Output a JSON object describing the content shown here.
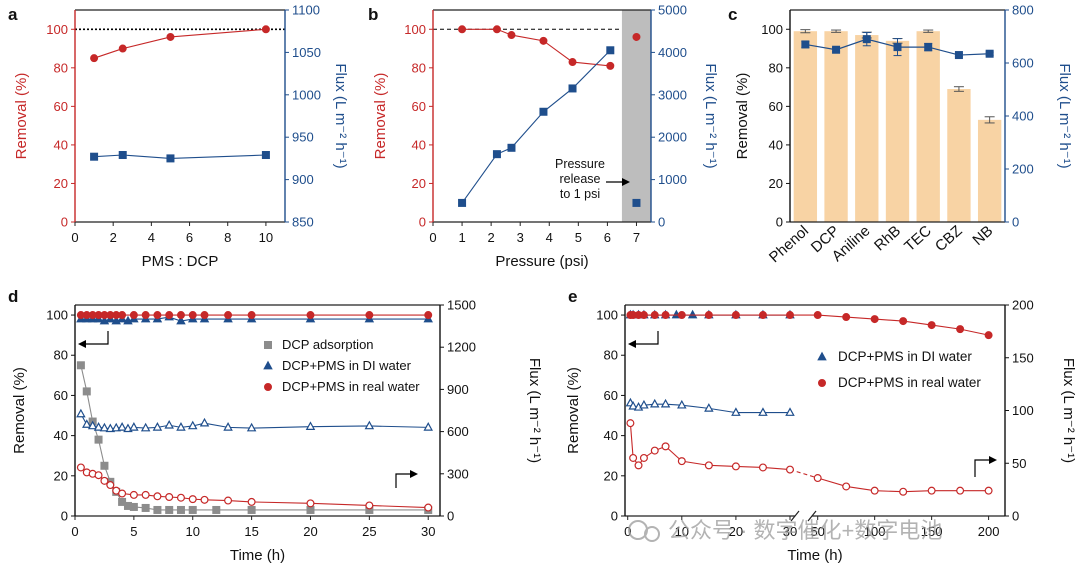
{
  "colors": {
    "red": "#c62828",
    "blue": "#1f4e8c",
    "bar": "#f8d3a4",
    "grey": "#8c8c8c",
    "shade": "#bdbdbd",
    "black": "#111111",
    "watermark": "#9a9a9a"
  },
  "watermark": "公众号 · 数字催化+数字电池",
  "chart_data": [
    {
      "panel": "a",
      "type": "line",
      "xlabel": "PMS : DCP",
      "xlim": [
        0,
        11
      ],
      "xticks": [
        0,
        2,
        4,
        6,
        8,
        10
      ],
      "ylabel": "Removal (%)",
      "ylim": [
        0,
        110
      ],
      "yticks": [
        0,
        20,
        40,
        60,
        80,
        100
      ],
      "y2label": "Flux (L m⁻² h⁻¹)",
      "y2lim": [
        850,
        1100
      ],
      "y2ticks": [
        850,
        900,
        950,
        1000,
        1050,
        1100
      ],
      "reference_line": {
        "axis": "y",
        "value": 100,
        "style": "dotted"
      },
      "series": [
        {
          "name": "Removal",
          "axis": "y",
          "color": "red",
          "marker": "circle",
          "x": [
            1,
            2.5,
            5,
            10
          ],
          "values": [
            85,
            90,
            96,
            100
          ]
        },
        {
          "name": "Flux",
          "axis": "y2",
          "color": "blue",
          "marker": "square",
          "x": [
            1,
            2.5,
            5,
            10
          ],
          "values": [
            927,
            929,
            925,
            929
          ]
        }
      ]
    },
    {
      "panel": "b",
      "type": "line",
      "xlabel": "Pressure (psi)",
      "xlim": [
        0,
        7.5
      ],
      "xticks": [
        0,
        1,
        2,
        3,
        4,
        5,
        6,
        7
      ],
      "ylabel": "Removal (%)",
      "ylim": [
        0,
        110
      ],
      "yticks": [
        0,
        20,
        40,
        60,
        80,
        100
      ],
      "y2label": "Flux (L m⁻² h⁻¹)",
      "y2lim": [
        0,
        5000
      ],
      "y2ticks": [
        0,
        1000,
        2000,
        3000,
        4000,
        5000
      ],
      "reference_line": {
        "axis": "y",
        "value": 100,
        "style": "dashed"
      },
      "shaded_region": [
        6.5,
        7.5
      ],
      "annotation": [
        "Pressure",
        "release",
        "to 1 psi"
      ],
      "series": [
        {
          "name": "Removal",
          "axis": "y",
          "color": "red",
          "marker": "circle",
          "x": [
            1,
            2.2,
            2.7,
            3.8,
            4.8,
            6.1
          ],
          "values": [
            100,
            100,
            97,
            94,
            83,
            81
          ]
        },
        {
          "name": "Removal after release",
          "axis": "y",
          "color": "red",
          "marker": "circle",
          "x": [
            7
          ],
          "values": [
            96
          ],
          "connected": false
        },
        {
          "name": "Flux",
          "axis": "y2",
          "color": "blue",
          "marker": "square",
          "x": [
            1,
            2.2,
            2.7,
            3.8,
            4.8,
            6.1
          ],
          "values": [
            450,
            1600,
            1750,
            2600,
            3150,
            4050
          ]
        },
        {
          "name": "Flux after release",
          "axis": "y2",
          "color": "blue",
          "marker": "square",
          "x": [
            7
          ],
          "values": [
            450
          ],
          "connected": false
        }
      ]
    },
    {
      "panel": "c",
      "type": "bar",
      "categories": [
        "Phenol",
        "DCP",
        "Aniline",
        "RhB",
        "TEC",
        "CBZ",
        "NB"
      ],
      "ylabel": "Removal (%)",
      "ylim": [
        0,
        110
      ],
      "yticks": [
        0,
        20,
        40,
        60,
        80,
        100
      ],
      "y2label": "Flux (L m⁻² h⁻¹)",
      "y2lim": [
        0,
        800
      ],
      "y2ticks": [
        0,
        200,
        400,
        600,
        800
      ],
      "series": [
        {
          "name": "Removal",
          "axis": "y",
          "kind": "bar",
          "color": "bar",
          "values": [
            99,
            99,
            97,
            94,
            99,
            69,
            53
          ],
          "errors": [
            0.8,
            0.6,
            1.5,
            1.2,
            0.6,
            1.2,
            1.6
          ]
        },
        {
          "name": "Flux",
          "axis": "y2",
          "kind": "line",
          "color": "blue",
          "marker": "square",
          "values": [
            670,
            650,
            690,
            660,
            660,
            630,
            635
          ],
          "errors": [
            12,
            8,
            25,
            32,
            14,
            6,
            6
          ]
        }
      ]
    },
    {
      "panel": "d",
      "type": "line",
      "xlabel": "Time (h)",
      "xlim": [
        0,
        31
      ],
      "xticks": [
        0,
        5,
        10,
        15,
        20,
        25,
        30
      ],
      "ylabel": "Removal (%)",
      "ylim": [
        0,
        105
      ],
      "yticks": [
        0,
        20,
        40,
        60,
        80,
        100
      ],
      "y2label": "Flux (L m⁻² h⁻¹)",
      "y2lim": [
        0,
        1500
      ],
      "y2ticks": [
        0,
        300,
        600,
        900,
        1200,
        1500
      ],
      "legend": {
        "placement": "center-right",
        "entries": [
          "DCP adsorption",
          "DCP+PMS in DI water",
          "DCP+PMS in real water"
        ]
      },
      "series": [
        {
          "name": "DCP adsorption",
          "axis": "y",
          "color": "grey",
          "marker": "square",
          "filled": true,
          "x": [
            0.5,
            1,
            1.5,
            2,
            2.5,
            3,
            3.5,
            4,
            4.5,
            5,
            6,
            7,
            8,
            9,
            10,
            12,
            15,
            20,
            25,
            30
          ],
          "values": [
            75,
            62,
            47,
            38,
            25,
            17,
            12,
            7,
            5,
            4.5,
            4,
            3,
            3,
            3,
            3,
            3,
            3,
            3,
            3,
            3
          ]
        },
        {
          "name": "DCP+PMS in DI water",
          "axis": "y",
          "color": "blue",
          "marker": "triangle",
          "filled": true,
          "x": [
            0.5,
            1,
            1.5,
            2,
            2.5,
            3,
            3.5,
            4,
            4.5,
            5,
            6,
            7,
            8,
            9,
            10,
            11,
            13,
            15,
            20,
            25,
            30
          ],
          "values": [
            98,
            98,
            98,
            98,
            97,
            98,
            97,
            98,
            97,
            98,
            98,
            98,
            99,
            97,
            98,
            98,
            98,
            98,
            98,
            98,
            98
          ]
        },
        {
          "name": "DCP+PMS in real water",
          "axis": "y",
          "color": "red",
          "marker": "circle",
          "filled": true,
          "x": [
            0.5,
            1,
            1.5,
            2,
            2.5,
            3,
            3.5,
            4,
            5,
            6,
            7,
            8,
            9,
            10,
            11,
            13,
            15,
            20,
            25,
            30
          ],
          "values": [
            100,
            100,
            100,
            100,
            100,
            100,
            100,
            100,
            100,
            100,
            100,
            100,
            100,
            100,
            100,
            100,
            100,
            100,
            100,
            100
          ]
        },
        {
          "name": "Flux (DI water)",
          "axis": "y2",
          "color": "blue",
          "marker": "triangle",
          "filled": false,
          "x": [
            0.5,
            1,
            1.5,
            2,
            2.5,
            3,
            3.5,
            4,
            4.5,
            5,
            6,
            7,
            8,
            9,
            10,
            11,
            13,
            15,
            20,
            25,
            30
          ],
          "values": [
            725,
            650,
            640,
            630,
            625,
            620,
            625,
            630,
            620,
            630,
            625,
            630,
            645,
            630,
            640,
            660,
            630,
            625,
            635,
            640,
            630
          ]
        },
        {
          "name": "Flux (real water)",
          "axis": "y2",
          "color": "red",
          "marker": "circle",
          "filled": false,
          "x": [
            0.5,
            1,
            1.5,
            2,
            2.5,
            3,
            3.5,
            4,
            5,
            6,
            7,
            8,
            9,
            10,
            11,
            13,
            15,
            20,
            25,
            30
          ],
          "values": [
            345,
            310,
            300,
            290,
            250,
            220,
            180,
            160,
            150,
            150,
            140,
            135,
            130,
            120,
            115,
            110,
            100,
            90,
            75,
            60
          ]
        }
      ]
    },
    {
      "panel": "e",
      "type": "line",
      "xlabel": "Time (h)",
      "xticks": [
        0,
        10,
        20,
        30,
        50,
        100,
        150,
        200
      ],
      "axis_break": {
        "at": 30,
        "resume": 45
      },
      "ylabel": "Removal (%)",
      "ylim": [
        0,
        105
      ],
      "yticks": [
        0,
        20,
        40,
        60,
        80,
        100
      ],
      "y2label": "Flux (L m⁻² h⁻¹)",
      "y2lim": [
        0,
        200
      ],
      "y2ticks": [
        0,
        50,
        100,
        150,
        200
      ],
      "legend": {
        "placement": "top-right",
        "entries": [
          "DCP+PMS in DI water",
          "DCP+PMS in real water"
        ]
      },
      "series": [
        {
          "name": "DCP+PMS in DI water",
          "axis": "y",
          "color": "blue",
          "marker": "triangle",
          "filled": true,
          "x": [
            0.5,
            1,
            2,
            3,
            5,
            7,
            9,
            12,
            15,
            20,
            25,
            30
          ],
          "values": [
            100,
            100,
            100,
            100,
            100,
            100,
            100,
            100,
            100,
            100,
            100,
            100
          ]
        },
        {
          "name": "DCP+PMS in real water",
          "axis": "y",
          "color": "red",
          "marker": "circle",
          "filled": true,
          "x": [
            0.5,
            1,
            2,
            3,
            5,
            7,
            10,
            15,
            20,
            25,
            30,
            50,
            75,
            100,
            125,
            150,
            175,
            200
          ],
          "values": [
            100,
            100,
            100,
            100,
            100,
            100,
            100,
            100,
            100,
            100,
            100,
            100,
            99,
            98,
            97,
            95,
            93,
            90
          ]
        },
        {
          "name": "Flux (DI water)",
          "axis": "y2",
          "color": "blue",
          "marker": "triangle",
          "filled": false,
          "x": [
            0.5,
            1,
            2,
            3,
            5,
            7,
            10,
            15,
            20,
            25,
            30
          ],
          "values": [
            107,
            104,
            103,
            105,
            106,
            106,
            105,
            102,
            98,
            98,
            98
          ]
        },
        {
          "name": "Flux (real water)",
          "axis": "y2",
          "color": "red",
          "marker": "circle",
          "filled": false,
          "dashed_break": true,
          "x": [
            0.5,
            1,
            2,
            3,
            5,
            7,
            10,
            15,
            20,
            25,
            30,
            50,
            75,
            100,
            125,
            150,
            175,
            200
          ],
          "values": [
            88,
            55,
            48,
            55,
            62,
            66,
            52,
            48,
            47,
            46,
            44,
            36,
            28,
            24,
            23,
            24,
            24,
            24
          ]
        }
      ]
    }
  ]
}
